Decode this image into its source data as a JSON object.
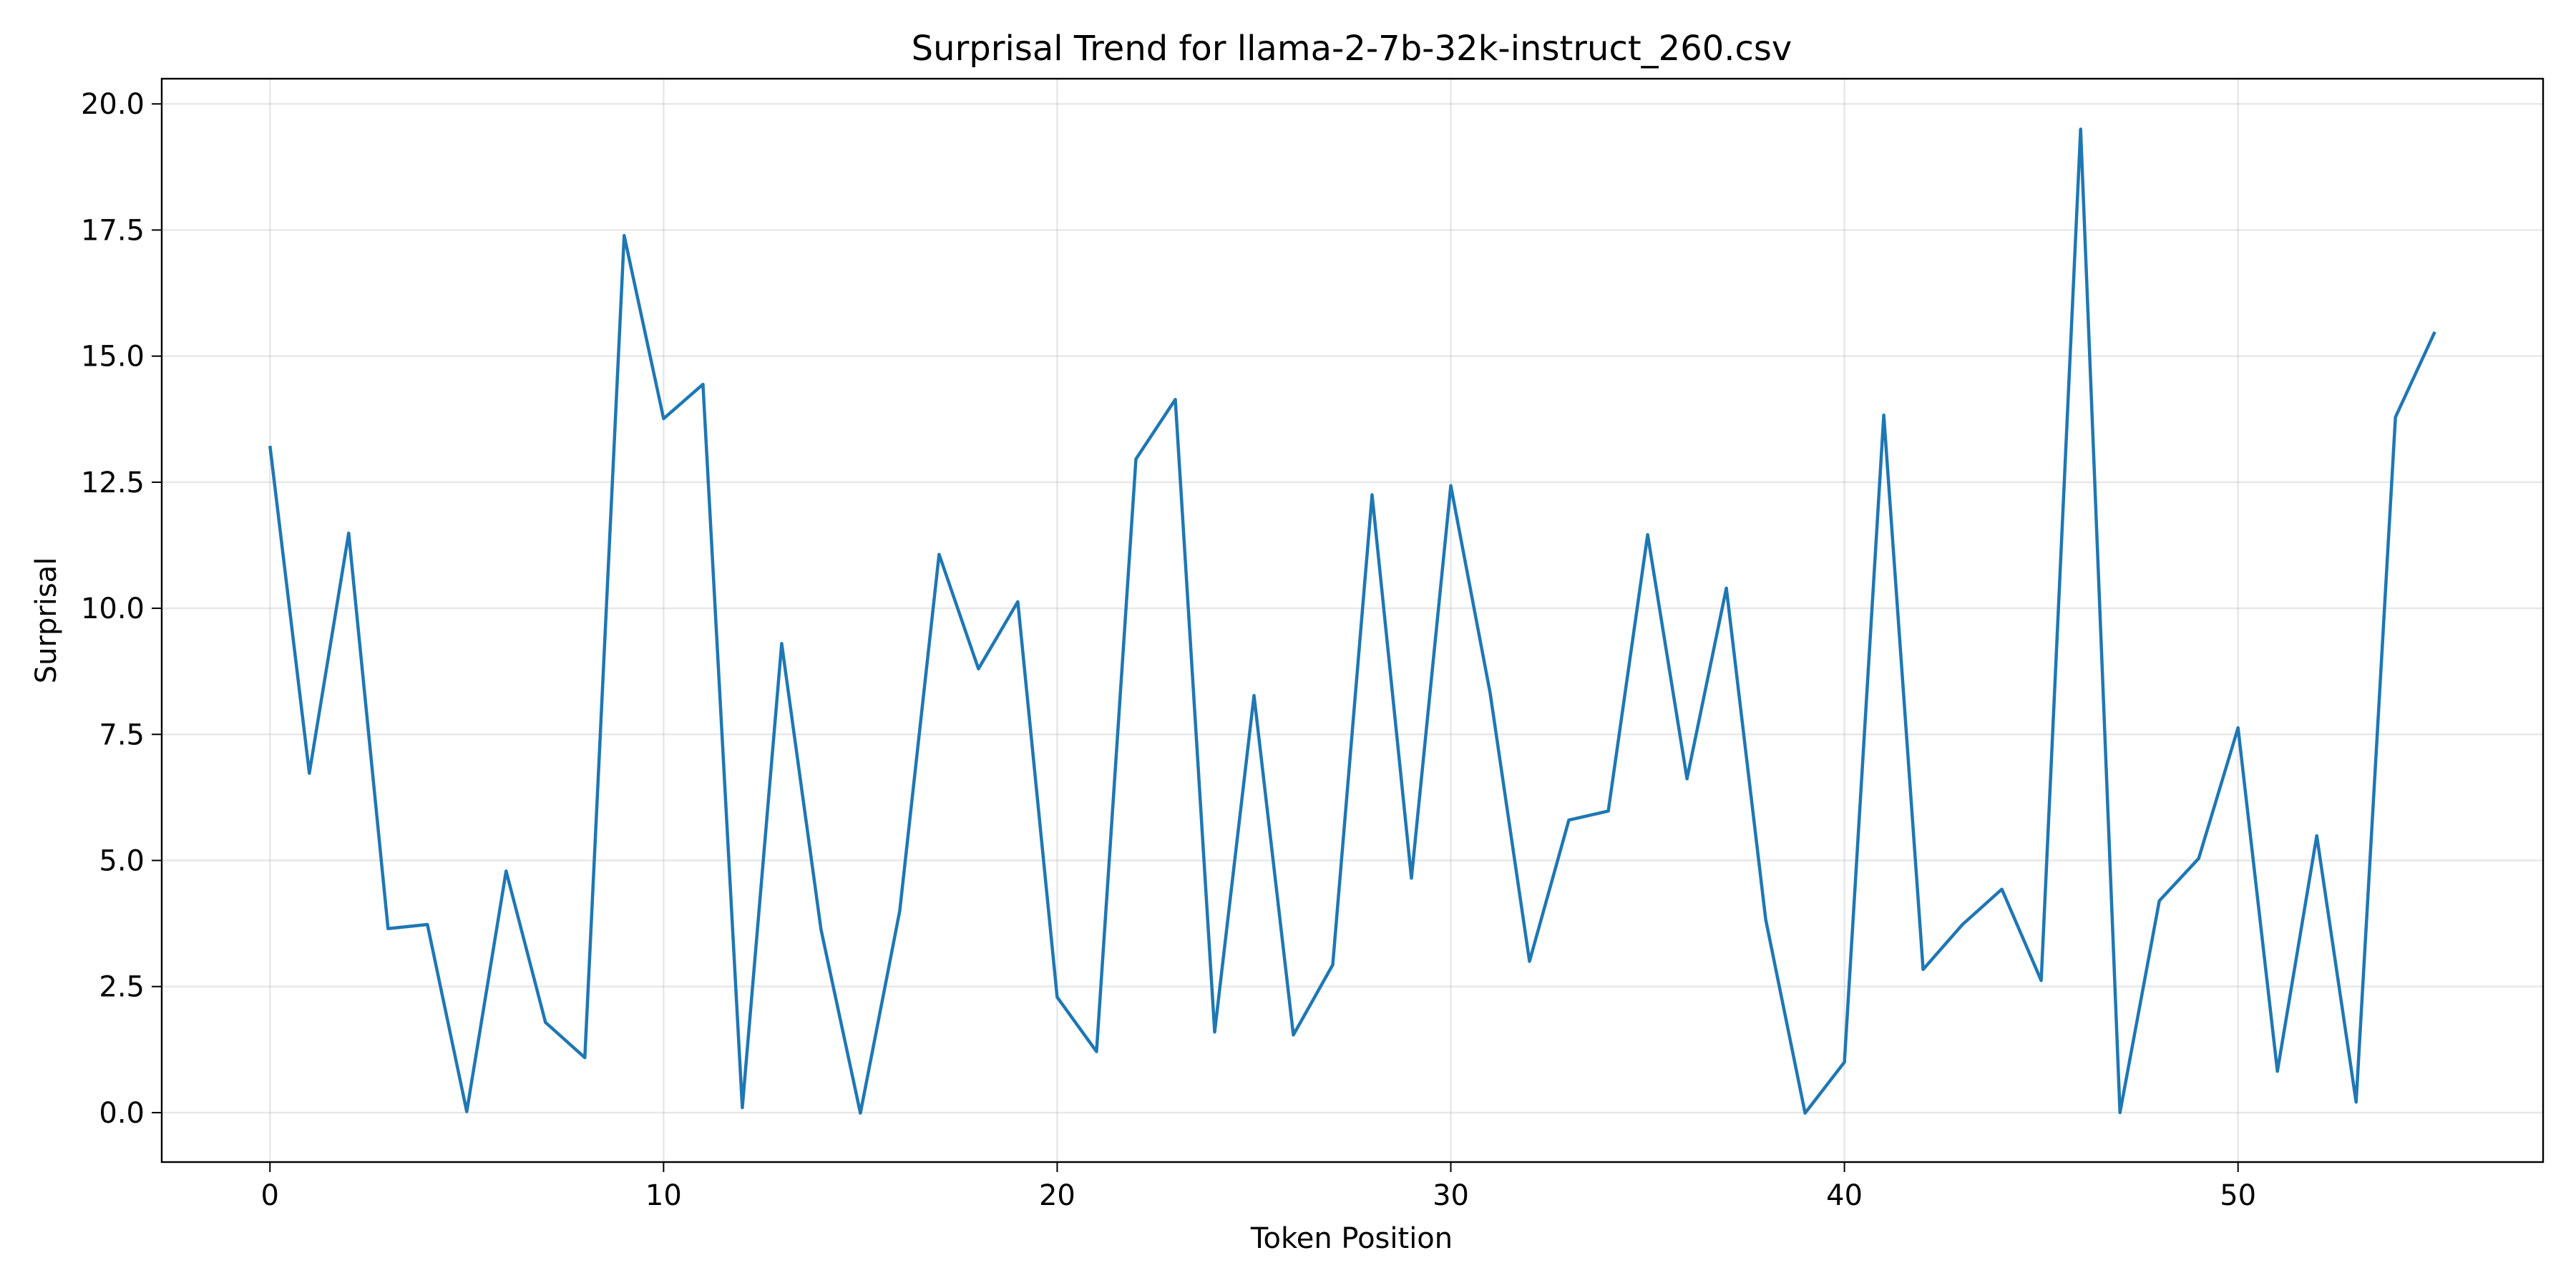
{
  "chart_data": {
    "type": "line",
    "title": "Surprisal Trend for llama-2-7b-32k-instruct_260.csv",
    "xlabel": "Token Position",
    "ylabel": "Surprisal",
    "xlim": [
      -2.75,
      57.75
    ],
    "ylim": [
      -0.98,
      20.5
    ],
    "x_ticks": [
      0,
      10,
      20,
      30,
      40,
      50
    ],
    "y_ticks": [
      0.0,
      2.5,
      5.0,
      7.5,
      10.0,
      12.5,
      15.0,
      17.5,
      20.0
    ],
    "x_tick_labels": [
      "0",
      "10",
      "20",
      "30",
      "40",
      "50"
    ],
    "y_tick_labels": [
      "0.0",
      "2.5",
      "5.0",
      "7.5",
      "10.0",
      "12.5",
      "15.0",
      "17.5",
      "20.0"
    ],
    "grid": true,
    "legend": false,
    "colors": {
      "series": "#1f77b4"
    },
    "series": [
      {
        "x": [
          0,
          1,
          2,
          3,
          4,
          5,
          6,
          7,
          8,
          9,
          10,
          11,
          12,
          13,
          14,
          15,
          16,
          17,
          18,
          19,
          20,
          21,
          22,
          23,
          24,
          25,
          26,
          27,
          28,
          29,
          30,
          31,
          32,
          33,
          34,
          35,
          36,
          37,
          38,
          39,
          40,
          41,
          42,
          43,
          44,
          45,
          46,
          47,
          48,
          49,
          50,
          51,
          52,
          53,
          54,
          55
        ],
        "values": [
          13.22,
          6.73,
          11.49,
          3.65,
          3.73,
          0.02,
          4.79,
          1.79,
          1.09,
          17.39,
          13.76,
          14.44,
          0.1,
          9.3,
          3.63,
          -0.01,
          4.0,
          11.07,
          8.8,
          10.13,
          2.29,
          1.21,
          12.96,
          14.14,
          1.6,
          8.27,
          1.54,
          2.93,
          12.25,
          4.65,
          12.43,
          8.32,
          3.0,
          5.8,
          5.98,
          11.46,
          6.62,
          10.4,
          3.83,
          -0.01,
          1.0,
          13.83,
          2.84,
          3.73,
          4.43,
          2.62,
          19.5,
          0.0,
          4.2,
          5.04,
          7.63,
          0.82,
          5.49,
          0.21,
          13.79,
          15.48
        ]
      }
    ]
  }
}
